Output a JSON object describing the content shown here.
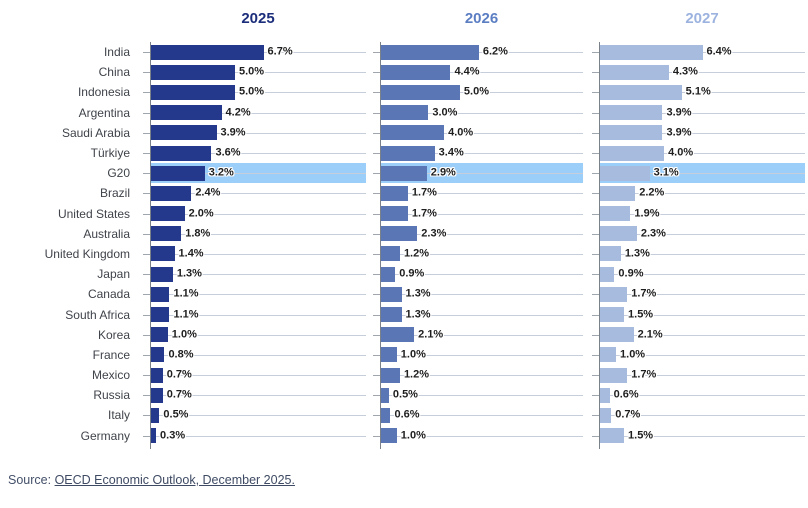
{
  "chart_data": {
    "type": "bar",
    "orientation": "horizontal",
    "title": "",
    "categories": [
      "India",
      "China",
      "Indonesia",
      "Argentina",
      "Saudi Arabia",
      "Türkiye",
      "G20",
      "Brazil",
      "United States",
      "Australia",
      "United Kingdom",
      "Japan",
      "Canada",
      "South Africa",
      "Korea",
      "France",
      "Mexico",
      "Russia",
      "Italy",
      "Germany"
    ],
    "highlighted_category": "G20",
    "value_suffix": "%",
    "axis_max": 12.8,
    "gridlines": true,
    "legend_position": "column-headers",
    "highlight_color": "#9CCEFA",
    "series": [
      {
        "name": "2025",
        "bar_color": "#24398C",
        "header_color": "#1C2E7B",
        "values": [
          6.7,
          5.0,
          5.0,
          4.2,
          3.9,
          3.6,
          3.2,
          2.4,
          2.0,
          1.8,
          1.4,
          1.3,
          1.1,
          1.1,
          1.0,
          0.8,
          0.7,
          0.7,
          0.5,
          0.3
        ]
      },
      {
        "name": "2026",
        "bar_color": "#5B76B4",
        "header_color": "#5B7EC3",
        "values": [
          6.2,
          4.4,
          5.0,
          3.0,
          4.0,
          3.4,
          2.9,
          1.7,
          1.7,
          2.3,
          1.2,
          0.9,
          1.3,
          1.3,
          2.1,
          1.0,
          1.2,
          0.5,
          0.6,
          1.0
        ]
      },
      {
        "name": "2027",
        "bar_color": "#A6BBDE",
        "header_color": "#9DB3DF",
        "values": [
          6.4,
          4.3,
          5.1,
          3.9,
          3.9,
          4.0,
          3.1,
          2.2,
          1.9,
          2.3,
          1.3,
          0.9,
          1.7,
          1.5,
          2.1,
          1.0,
          1.7,
          0.6,
          0.7,
          1.5
        ]
      }
    ]
  },
  "source": {
    "prefix": "Source: ",
    "link_text": "OECD Economic Outlook, December 2025."
  }
}
